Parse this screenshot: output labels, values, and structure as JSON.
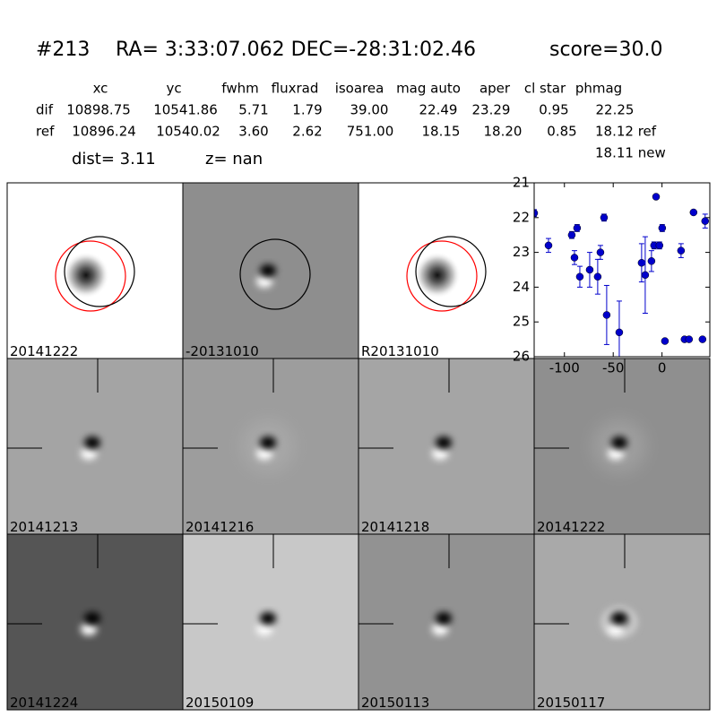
{
  "header": {
    "id": "#213",
    "coords": "RA= 3:33:07.062 DEC=-28:31:02.46",
    "score": "score=30.0"
  },
  "table": {
    "columns": [
      "xc",
      "yc",
      "fwhm",
      "fluxrad",
      "isoarea",
      "mag auto",
      "aper",
      "cl star",
      "phmag"
    ],
    "rows": [
      [
        "dif",
        "10898.75",
        "10541.86",
        "5.71",
        "1.79",
        "39.00",
        "22.49",
        "23.29",
        "0.95",
        "22.25"
      ],
      [
        "ref",
        "10896.24",
        "10540.02",
        "3.60",
        "2.62",
        "751.00",
        "18.15",
        "18.20",
        "0.85",
        "18.12 ref"
      ]
    ],
    "extra": "18.11 new"
  },
  "dist": "dist=  3.11",
  "z": "z=   nan",
  "panels": [
    {
      "label": "20141222",
      "label_color": "#000000"
    },
    {
      "label": "-20131010",
      "label_color": "#000000"
    },
    {
      "label": "R20131010",
      "label_color": "#000000"
    },
    {
      "label": "20141213",
      "label_color": "#000000"
    },
    {
      "label": "20141216",
      "label_color": "#000000"
    },
    {
      "label": "20141218",
      "label_color": "#000000"
    },
    {
      "label": "20141222",
      "label_color": "#ff0000"
    },
    {
      "label": "20141224",
      "label_color": "#000000"
    },
    {
      "label": "20150109",
      "label_color": "#000000"
    },
    {
      "label": "20150113",
      "label_color": "#000000"
    },
    {
      "label": "20150117",
      "label_color": "#000000"
    }
  ],
  "chart_data": {
    "type": "scatter",
    "color": "#0000cc",
    "xlim": [
      -131,
      49
    ],
    "ylim": [
      26,
      21
    ],
    "xticks": [
      -100,
      -50,
      0
    ],
    "yticks": [
      21,
      22,
      23,
      24,
      25,
      26
    ],
    "x": [
      -131,
      -116.3,
      -92.5,
      -87,
      -89.7,
      -84.2,
      -74.1,
      -65.9,
      -63.1,
      -59.4,
      -56.7,
      -43.8,
      -20.9,
      -17.2,
      -10.8,
      -8.1,
      -6.1,
      -2.6,
      0.2,
      3,
      19.5,
      23.1,
      27.7,
      32.3,
      41.5,
      44.2
    ],
    "values": [
      21.87,
      22.8,
      22.5,
      22.3,
      23.15,
      23.7,
      23.5,
      23.7,
      23.0,
      22.0,
      24.8,
      25.3,
      23.3,
      23.65,
      23.25,
      22.8,
      21.4,
      22.8,
      22.3,
      25.55,
      22.95,
      25.5,
      25.5,
      21.85,
      25.5,
      22.1
    ],
    "errors": [
      0.1,
      0.2,
      0.1,
      0.1,
      0.2,
      0.3,
      0.5,
      0.5,
      0.2,
      0.1,
      0.85,
      0.9,
      0.55,
      1.1,
      0.3,
      0.1,
      0.05,
      0.1,
      0.1,
      0.05,
      0.2,
      0.05,
      0.05,
      0.05,
      0.05,
      0.2
    ]
  }
}
